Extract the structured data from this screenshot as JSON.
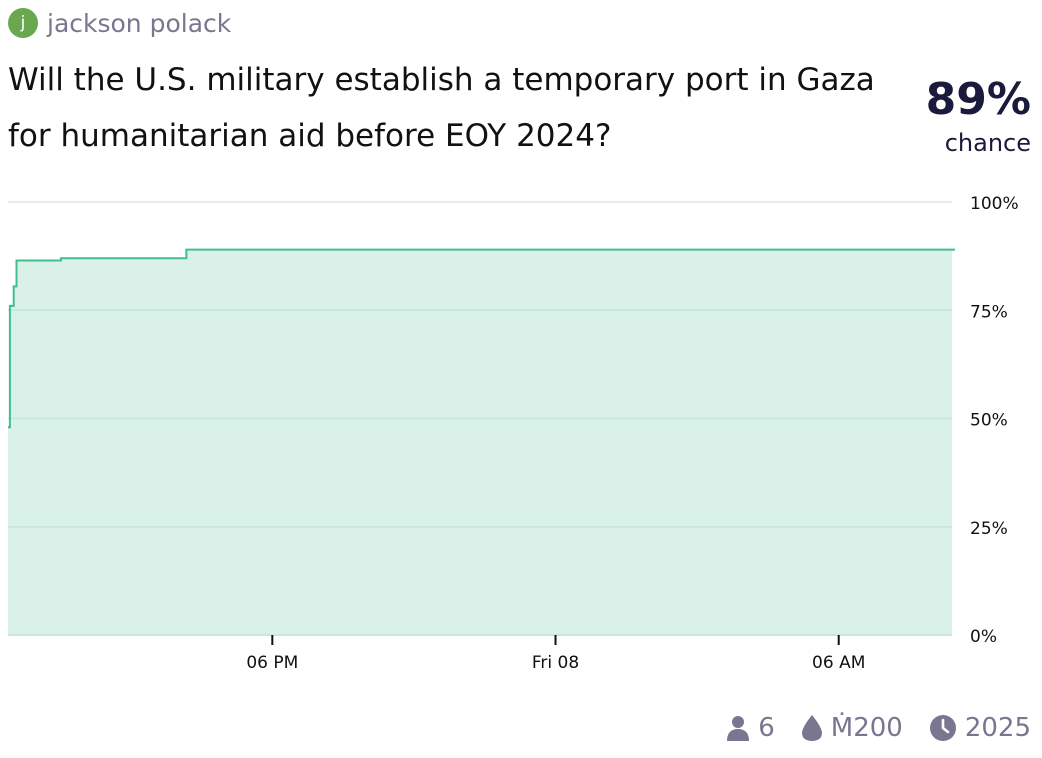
{
  "creator": {
    "initial": "j",
    "name": "jackson polack",
    "avatar_color": "#6aa84f"
  },
  "question": "Will the U.S. military establish a temporary port in Gaza for humanitarian aid before EOY 2024?",
  "probability": {
    "value": "89%",
    "label": "chance"
  },
  "colors": {
    "line": "#3fbf8c",
    "fill": "#d9f1e8",
    "grid": "#e4e4e9",
    "text": "#111111",
    "muted": "#7a7690"
  },
  "chart_data": {
    "type": "area",
    "title": "",
    "xlabel": "",
    "ylabel": "",
    "ylim": [
      0,
      100
    ],
    "x_range": [
      0,
      100
    ],
    "x_ticks": [
      {
        "label": "06 PM",
        "x": 28.0
      },
      {
        "label": "Fri 08",
        "x": 58.0
      },
      {
        "label": "06 AM",
        "x": 88.0
      }
    ],
    "y_ticks": [
      {
        "label": "100%",
        "value": 100
      },
      {
        "label": "75%",
        "value": 75
      },
      {
        "label": "50%",
        "value": 50
      },
      {
        "label": "25%",
        "value": 25
      },
      {
        "label": "0%",
        "value": 0
      }
    ],
    "grid": true,
    "step": true,
    "series": [
      {
        "x": [
          0,
          0.2,
          0.6,
          0.9,
          5.6,
          18.9,
          100
        ],
        "values": [
          48,
          76,
          80.5,
          86.5,
          87,
          89,
          89
        ]
      }
    ]
  },
  "footer": {
    "traders_icon": "person-icon",
    "traders": "6",
    "liquidity_icon": "droplet-icon",
    "liquidity": "Ṁ200",
    "close_icon": "clock-icon",
    "close_date": "2025"
  }
}
